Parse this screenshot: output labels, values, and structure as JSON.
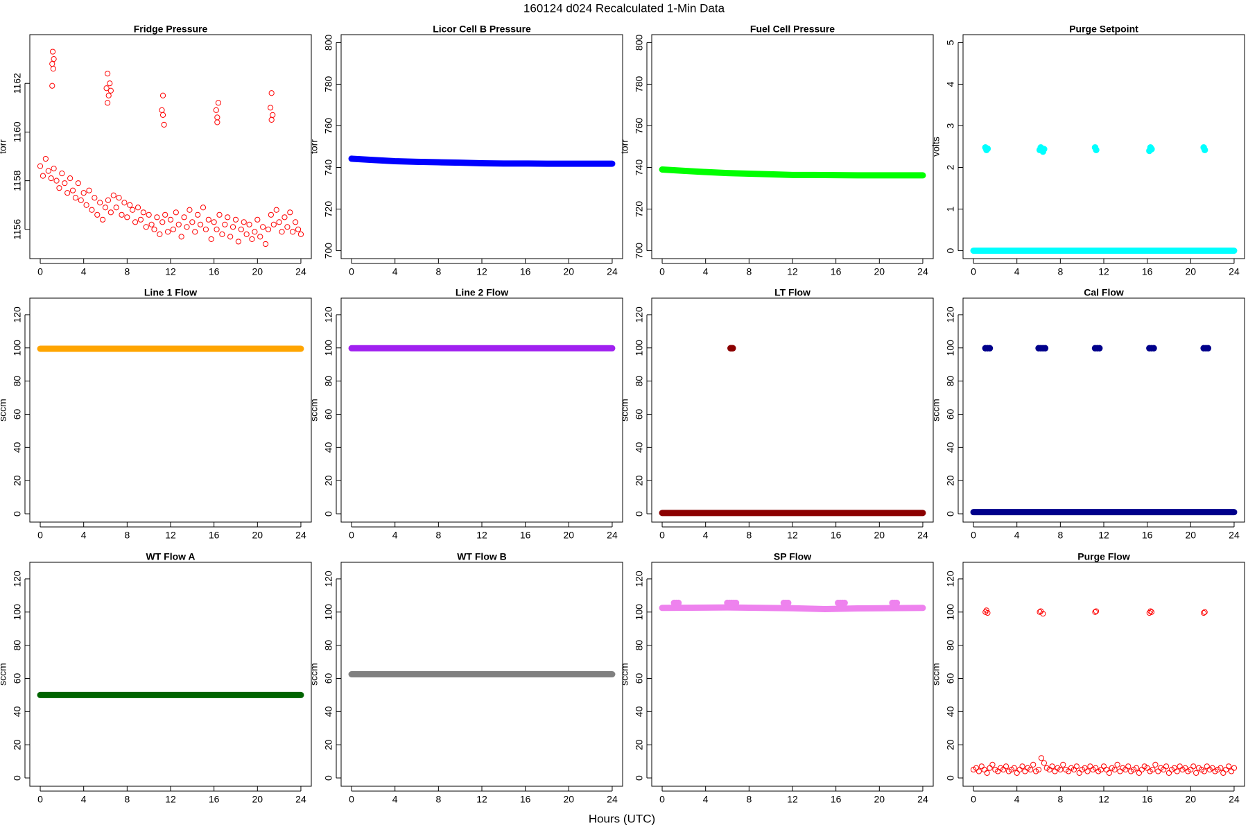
{
  "title": "160124   d024   Recalculated 1-Min Data",
  "xlabel": "Hours (UTC)",
  "chart_data": [
    {
      "type": "scatter",
      "title": "Fridge Pressure",
      "ylabel": "torr",
      "xlim": [
        -0.96,
        24.96
      ],
      "xticks": [
        0,
        4,
        8,
        12,
        16,
        20,
        24
      ],
      "ylim": [
        1154.8,
        1164
      ],
      "yticks": [
        1156,
        1158,
        1160,
        1162
      ],
      "series": [
        {
          "type": "scatter",
          "marker": "open",
          "color": "#ff0000",
          "x": [
            0,
            0.25,
            0.5,
            0.75,
            1,
            1.25,
            1.5,
            1.75,
            2,
            2.25,
            2.5,
            2.75,
            3,
            3.25,
            3.5,
            3.75,
            4,
            4.25,
            4.5,
            4.75,
            5,
            5.25,
            5.5,
            5.75,
            6,
            6.25,
            6.5,
            6.75,
            7,
            7.25,
            7.5,
            7.75,
            8,
            8.25,
            8.5,
            8.75,
            9,
            9.25,
            9.5,
            9.75,
            10,
            10.25,
            10.5,
            10.75,
            11,
            11.25,
            11.5,
            11.75,
            12,
            12.25,
            12.5,
            12.75,
            13,
            13.25,
            13.5,
            13.75,
            14,
            14.25,
            14.5,
            14.75,
            15,
            15.25,
            15.5,
            15.75,
            16,
            16.25,
            16.5,
            16.75,
            17,
            17.25,
            17.5,
            17.75,
            18,
            18.25,
            18.5,
            18.75,
            19,
            19.25,
            19.5,
            19.75,
            20,
            20.25,
            20.5,
            20.75,
            21,
            21.25,
            21.5,
            21.75,
            22,
            22.25,
            22.5,
            22.75,
            23,
            23.25,
            23.5,
            23.75,
            24
          ],
          "values": [
            1158.6,
            1158.2,
            1158.9,
            1158.4,
            1158.1,
            1158.5,
            1158.0,
            1157.7,
            1158.3,
            1157.9,
            1157.5,
            1158.1,
            1157.6,
            1157.3,
            1157.9,
            1157.2,
            1157.5,
            1157.0,
            1157.6,
            1156.8,
            1157.3,
            1156.6,
            1157.1,
            1156.4,
            1156.9,
            1157.2,
            1156.7,
            1157.4,
            1156.9,
            1157.3,
            1156.6,
            1157.1,
            1156.5,
            1157.0,
            1156.8,
            1156.3,
            1156.9,
            1156.4,
            1156.7,
            1156.1,
            1156.6,
            1156.2,
            1156.0,
            1156.5,
            1155.8,
            1156.3,
            1156.6,
            1155.9,
            1156.4,
            1156.0,
            1156.7,
            1156.2,
            1155.7,
            1156.5,
            1156.1,
            1156.8,
            1156.3,
            1155.9,
            1156.6,
            1156.2,
            1156.9,
            1156.0,
            1156.4,
            1155.6,
            1156.3,
            1156.0,
            1156.6,
            1155.8,
            1156.2,
            1156.5,
            1155.7,
            1156.1,
            1156.4,
            1155.5,
            1156.0,
            1156.3,
            1155.8,
            1156.2,
            1155.6,
            1155.9,
            1156.4,
            1155.7,
            1156.1,
            1155.4,
            1156.0,
            1156.6,
            1156.2,
            1156.8,
            1156.3,
            1155.9,
            1156.5,
            1156.1,
            1156.7,
            1155.9,
            1156.3,
            1156.0,
            1155.8
          ]
        },
        {
          "type": "scatter",
          "marker": "open",
          "color": "#ff0000",
          "x": [
            1.1,
            1.15,
            1.2,
            1.25,
            1.1,
            6.1,
            6.2,
            6.3,
            6.4,
            6.2,
            6.5,
            11.2,
            11.3,
            11.4,
            11.3,
            16.2,
            16.3,
            16.4,
            16.3,
            21.2,
            21.3,
            21.4,
            21.3
          ],
          "values": [
            1162.8,
            1163.3,
            1162.6,
            1163.0,
            1161.9,
            1161.8,
            1162.4,
            1161.5,
            1162.0,
            1161.2,
            1161.7,
            1160.9,
            1161.5,
            1160.3,
            1160.7,
            1160.9,
            1160.4,
            1161.2,
            1160.6,
            1161.0,
            1161.6,
            1160.7,
            1160.5
          ]
        }
      ]
    },
    {
      "type": "line",
      "title": "Licor Cell B Pressure",
      "ylabel": "torr",
      "xlim": [
        -0.96,
        24.96
      ],
      "xticks": [
        0,
        4,
        8,
        12,
        16,
        20,
        24
      ],
      "ylim": [
        696.2,
        803.8
      ],
      "yticks": [
        700,
        720,
        740,
        760,
        780,
        800
      ],
      "series": [
        {
          "type": "line",
          "color": "#0000ff",
          "x": [
            0,
            2,
            4,
            6,
            8,
            10,
            12,
            14,
            16,
            18,
            20,
            22,
            24
          ],
          "values": [
            744.2,
            743.6,
            743.0,
            742.7,
            742.5,
            742.3,
            742.0,
            741.9,
            741.9,
            741.8,
            741.8,
            741.8,
            741.8
          ]
        }
      ]
    },
    {
      "type": "line",
      "title": "Fuel Cell Pressure",
      "ylabel": "torr",
      "xlim": [
        -0.96,
        24.96
      ],
      "xticks": [
        0,
        4,
        8,
        12,
        16,
        20,
        24
      ],
      "ylim": [
        696.2,
        803.8
      ],
      "yticks": [
        700,
        720,
        740,
        760,
        780,
        800
      ],
      "series": [
        {
          "type": "line",
          "color": "#00ff00",
          "x": [
            0,
            2,
            4,
            6,
            8,
            10,
            12,
            14,
            16,
            18,
            20,
            22,
            24
          ],
          "values": [
            739.0,
            738.4,
            737.8,
            737.3,
            737.0,
            736.7,
            736.4,
            736.4,
            736.3,
            736.2,
            736.2,
            736.2,
            736.2
          ]
        }
      ]
    },
    {
      "type": "line",
      "title": "Purge Setpoint",
      "ylabel": "volts",
      "xlim": [
        -0.96,
        24.96
      ],
      "xticks": [
        0,
        4,
        8,
        12,
        16,
        20,
        24
      ],
      "ylim": [
        -0.19,
        5.19
      ],
      "yticks": [
        0,
        1,
        2,
        3,
        4,
        5
      ],
      "series": [
        {
          "type": "line",
          "color": "#00ffff",
          "x": [
            0,
            24
          ],
          "values": [
            0,
            0
          ]
        },
        {
          "type": "scatter",
          "marker": "filled",
          "color": "#00ffff",
          "x": [
            1.1,
            1.2,
            1.3,
            6.1,
            6.2,
            6.4,
            6.5,
            11.2,
            11.3,
            16.2,
            16.3,
            16.4,
            21.2,
            21.3
          ],
          "values": [
            2.48,
            2.42,
            2.45,
            2.42,
            2.48,
            2.38,
            2.44,
            2.48,
            2.42,
            2.4,
            2.48,
            2.44,
            2.48,
            2.42
          ]
        }
      ]
    },
    {
      "type": "line",
      "title": "Line 1 Flow",
      "ylabel": "sccm",
      "xlim": [
        -0.96,
        24.96
      ],
      "xticks": [
        0,
        4,
        8,
        12,
        16,
        20,
        24
      ],
      "ylim": [
        -5,
        130
      ],
      "yticks": [
        0,
        20,
        40,
        60,
        80,
        100,
        120
      ],
      "series": [
        {
          "type": "line",
          "color": "#ffa500",
          "x": [
            0,
            24
          ],
          "values": [
            99.5,
            99.5
          ]
        }
      ]
    },
    {
      "type": "line",
      "title": "Line 2 Flow",
      "ylabel": "sccm",
      "xlim": [
        -0.96,
        24.96
      ],
      "xticks": [
        0,
        4,
        8,
        12,
        16,
        20,
        24
      ],
      "ylim": [
        -5,
        130
      ],
      "yticks": [
        0,
        20,
        40,
        60,
        80,
        100,
        120
      ],
      "series": [
        {
          "type": "line",
          "color": "#a020f0",
          "x": [
            0,
            24
          ],
          "values": [
            99.8,
            99.8
          ]
        }
      ]
    },
    {
      "type": "line",
      "title": "LT Flow",
      "ylabel": "sccm",
      "xlim": [
        -0.96,
        24.96
      ],
      "xticks": [
        0,
        4,
        8,
        12,
        16,
        20,
        24
      ],
      "ylim": [
        -5,
        130
      ],
      "yticks": [
        0,
        20,
        40,
        60,
        80,
        100,
        120
      ],
      "series": [
        {
          "type": "line",
          "color": "#8b0000",
          "x": [
            0,
            24
          ],
          "values": [
            0.5,
            0.5
          ]
        },
        {
          "type": "scatter",
          "marker": "filled",
          "color": "#8b0000",
          "x": [
            6.3,
            6.4,
            6.5
          ],
          "values": [
            99.8,
            99.8,
            99.8
          ]
        }
      ]
    },
    {
      "type": "line",
      "title": "Cal Flow",
      "ylabel": "sccm",
      "xlim": [
        -0.96,
        24.96
      ],
      "xticks": [
        0,
        4,
        8,
        12,
        16,
        20,
        24
      ],
      "ylim": [
        -5,
        130
      ],
      "yticks": [
        0,
        20,
        40,
        60,
        80,
        100,
        120
      ],
      "series": [
        {
          "type": "line",
          "color": "#00008b",
          "x": [
            0,
            24
          ],
          "values": [
            1,
            1
          ]
        },
        {
          "type": "scatter",
          "marker": "filled",
          "color": "#00008b",
          "x": [
            1.1,
            1.3,
            1.5,
            6.0,
            6.2,
            6.4,
            6.6,
            11.2,
            11.4,
            11.6,
            16.2,
            16.4,
            16.6,
            21.2,
            21.4,
            21.6
          ],
          "values": [
            99.8,
            99.8,
            99.8,
            99.8,
            99.8,
            99.8,
            99.8,
            99.8,
            99.8,
            99.8,
            99.8,
            99.8,
            99.8,
            99.8,
            99.8,
            99.8
          ]
        }
      ]
    },
    {
      "type": "line",
      "title": "WT Flow A",
      "ylabel": "sccm",
      "xlim": [
        -0.96,
        24.96
      ],
      "xticks": [
        0,
        4,
        8,
        12,
        16,
        20,
        24
      ],
      "ylim": [
        -5,
        130
      ],
      "yticks": [
        0,
        20,
        40,
        60,
        80,
        100,
        120
      ],
      "series": [
        {
          "type": "line",
          "color": "#006400",
          "x": [
            0,
            24
          ],
          "values": [
            50,
            50
          ]
        }
      ]
    },
    {
      "type": "line",
      "title": "WT Flow B",
      "ylabel": "sccm",
      "xlim": [
        -0.96,
        24.96
      ],
      "xticks": [
        0,
        4,
        8,
        12,
        16,
        20,
        24
      ],
      "ylim": [
        -5,
        130
      ],
      "yticks": [
        0,
        20,
        40,
        60,
        80,
        100,
        120
      ],
      "series": [
        {
          "type": "line",
          "color": "#808080",
          "x": [
            0,
            24
          ],
          "values": [
            62.5,
            62.5
          ]
        }
      ]
    },
    {
      "type": "line",
      "title": "SP Flow",
      "ylabel": "sccm",
      "xlim": [
        -0.96,
        24.96
      ],
      "xticks": [
        0,
        4,
        8,
        12,
        16,
        20,
        24
      ],
      "ylim": [
        -5,
        130
      ],
      "yticks": [
        0,
        20,
        40,
        60,
        80,
        100,
        120
      ],
      "series": [
        {
          "type": "line",
          "color": "#ee82ee",
          "x": [
            0,
            6,
            12,
            15,
            18,
            24
          ],
          "values": [
            102.5,
            102.8,
            102.3,
            101.8,
            102.2,
            102.5
          ]
        },
        {
          "type": "scatter",
          "marker": "filled",
          "color": "#ee82ee",
          "x": [
            1.1,
            1.3,
            1.5,
            6.0,
            6.2,
            6.4,
            6.6,
            6.8,
            11.2,
            11.4,
            11.6,
            16.2,
            16.4,
            16.6,
            16.8,
            21.2,
            21.4,
            21.6
          ],
          "values": [
            105.5,
            105.5,
            105.5,
            105.5,
            105.5,
            105.5,
            105.5,
            105.5,
            105.5,
            105.5,
            105.5,
            105.5,
            105.5,
            105.5,
            105.5,
            105.5,
            105.5,
            105.5
          ]
        }
      ]
    },
    {
      "type": "scatter",
      "title": "Purge Flow",
      "ylabel": "sccm",
      "xlim": [
        -0.96,
        24.96
      ],
      "xticks": [
        0,
        4,
        8,
        12,
        16,
        20,
        24
      ],
      "ylim": [
        -5,
        130
      ],
      "yticks": [
        0,
        20,
        40,
        60,
        80,
        100,
        120
      ],
      "series": [
        {
          "type": "scatter",
          "marker": "open",
          "color": "#ff0000",
          "x": [
            0,
            0.25,
            0.5,
            0.75,
            1,
            1.25,
            1.5,
            1.75,
            2,
            2.25,
            2.5,
            2.75,
            3,
            3.25,
            3.5,
            3.75,
            4,
            4.25,
            4.5,
            4.75,
            5,
            5.25,
            5.5,
            5.75,
            6,
            6.25,
            6.5,
            6.75,
            7,
            7.25,
            7.5,
            7.75,
            8,
            8.25,
            8.5,
            8.75,
            9,
            9.25,
            9.5,
            9.75,
            10,
            10.25,
            10.5,
            10.75,
            11,
            11.25,
            11.5,
            11.75,
            12,
            12.25,
            12.5,
            12.75,
            13,
            13.25,
            13.5,
            13.75,
            14,
            14.25,
            14.5,
            14.75,
            15,
            15.25,
            15.5,
            15.75,
            16,
            16.25,
            16.5,
            16.75,
            17,
            17.25,
            17.5,
            17.75,
            18,
            18.25,
            18.5,
            18.75,
            19,
            19.25,
            19.5,
            19.75,
            20,
            20.25,
            20.5,
            20.75,
            21,
            21.25,
            21.5,
            21.75,
            22,
            22.25,
            22.5,
            22.75,
            23,
            23.25,
            23.5,
            23.75,
            24
          ],
          "values": [
            5,
            6,
            4,
            7,
            5,
            3,
            6,
            8,
            5,
            4,
            6,
            5,
            7,
            4,
            5,
            6,
            3,
            5,
            7,
            4,
            6,
            5,
            8,
            4,
            5,
            12,
            9,
            6,
            5,
            7,
            4,
            6,
            5,
            8,
            5,
            4,
            6,
            5,
            7,
            3,
            5,
            6,
            4,
            7,
            5,
            6,
            4,
            5,
            7,
            5,
            3,
            6,
            5,
            8,
            4,
            6,
            5,
            7,
            4,
            5,
            6,
            3,
            5,
            7,
            6,
            4,
            5,
            8,
            4,
            6,
            5,
            7,
            3,
            5,
            6,
            4,
            7,
            5,
            6,
            4,
            5,
            7,
            3,
            6,
            5,
            4,
            7,
            5,
            6,
            4,
            5,
            6,
            3,
            5,
            7,
            4,
            6
          ]
        },
        {
          "type": "scatter",
          "marker": "open",
          "color": "#ff0000",
          "x": [
            1.1,
            1.2,
            1.3,
            6.1,
            6.2,
            6.4,
            11.2,
            11.3,
            16.2,
            16.3,
            16.4,
            21.2,
            21.3
          ],
          "values": [
            100,
            101,
            99.5,
            100,
            100.5,
            99,
            100,
            100.5,
            99.5,
            100.5,
            100,
            99.5,
            100
          ]
        }
      ]
    }
  ]
}
